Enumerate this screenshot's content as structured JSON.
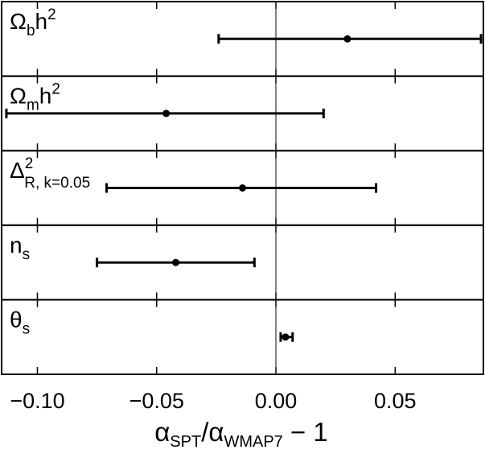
{
  "chart_data": {
    "type": "scatter",
    "panels": [
      {
        "label_main": "Ω",
        "label_sub": "b",
        "label_tail": "h",
        "label_sup": "2",
        "value": 0.03,
        "err_low": -0.024,
        "err_high": 0.086
      },
      {
        "label_main": "Ω",
        "label_sub": "m",
        "label_tail": "h",
        "label_sup": "2",
        "value": -0.046,
        "err_low": -0.113,
        "err_high": 0.02
      },
      {
        "label_main": "Δ",
        "label_sub": "R, k=0.05",
        "label_tail": "",
        "label_sup": "2",
        "value": -0.014,
        "err_low": -0.071,
        "err_high": 0.042
      },
      {
        "label_main": "n",
        "label_sub": "s",
        "label_tail": "",
        "label_sup": "",
        "value": -0.042,
        "err_low": -0.075,
        "err_high": -0.009
      },
      {
        "label_main": "θ",
        "label_sub": "s",
        "label_tail": "",
        "label_sup": "",
        "value": 0.004,
        "err_low": 0.002,
        "err_high": 0.007
      }
    ],
    "xlim": [
      -0.115,
      0.087
    ],
    "xticks": [
      -0.1,
      -0.05,
      0.0,
      0.05
    ],
    "xtick_labels": [
      "−0.10",
      "−0.05",
      "0.00",
      "0.05"
    ],
    "xlabel": {
      "main1": "α",
      "sub1": "SPT",
      "slash": "/α",
      "sub2": "WMAP7",
      "tail": " − 1"
    },
    "reference_line": 0.0,
    "grid": false
  }
}
